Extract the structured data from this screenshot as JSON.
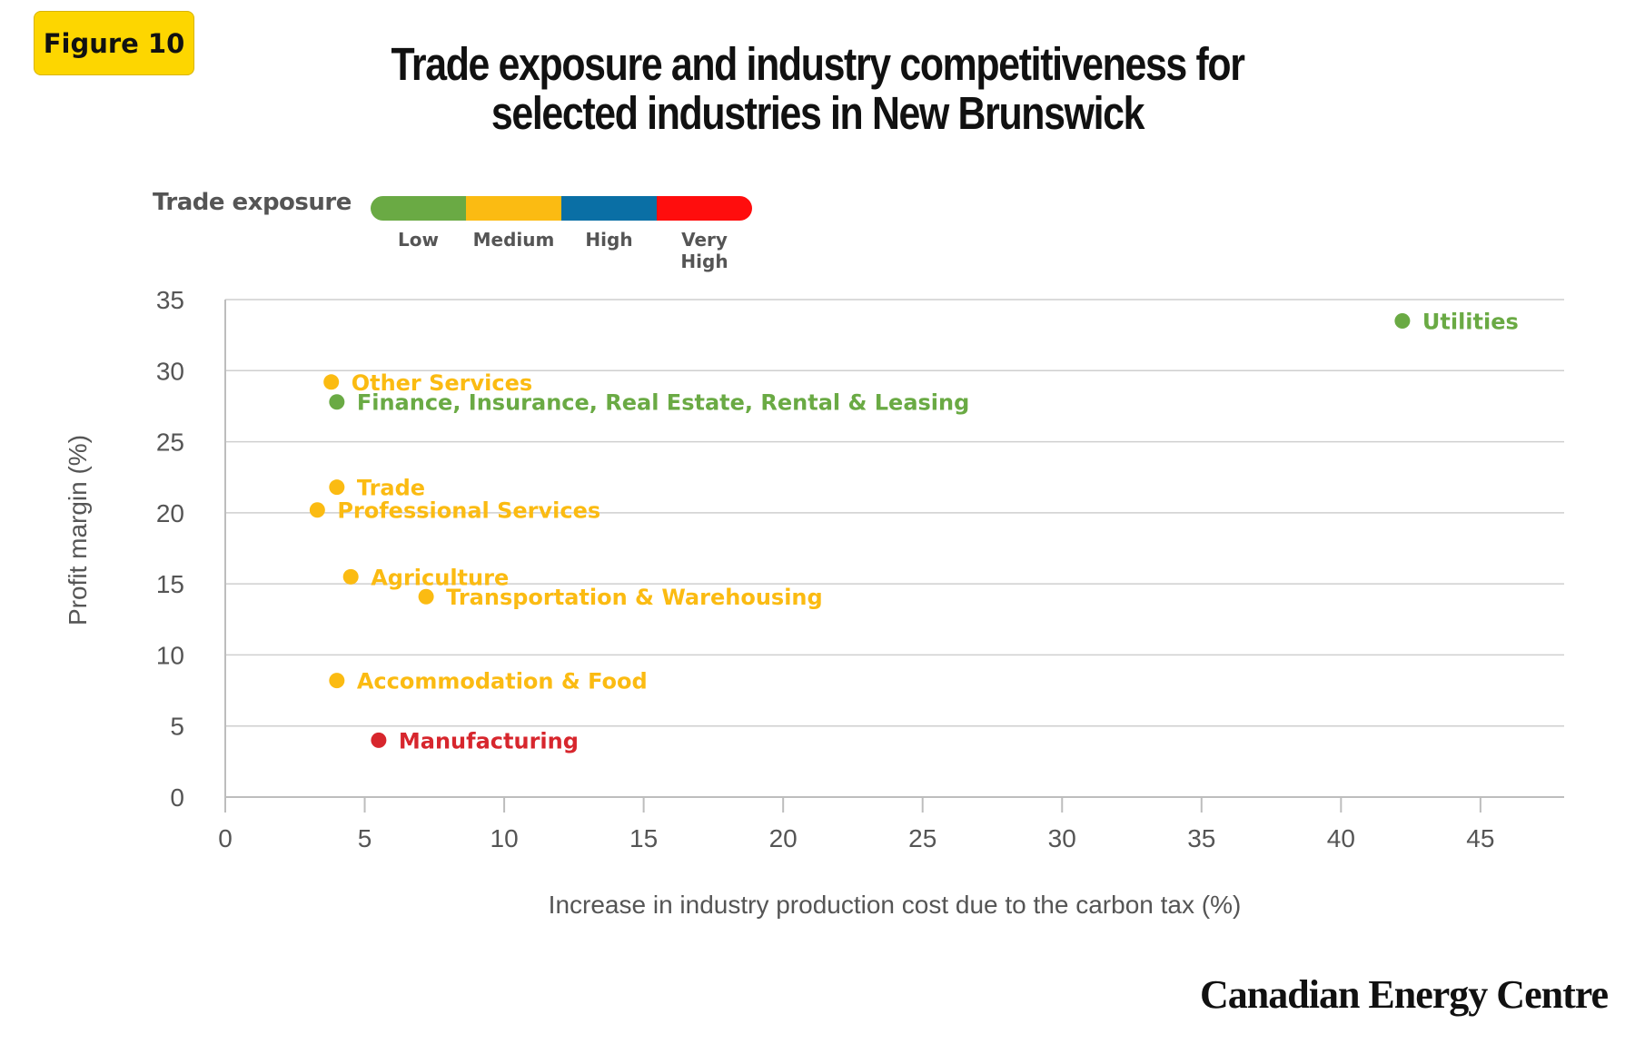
{
  "badge": "Figure 10",
  "title_lines": [
    "Trade exposure and industry competitiveness for",
    "selected industries in New Brunswick"
  ],
  "legend": {
    "title": "Trade exposure",
    "items": [
      {
        "label": "Low",
        "color": "#6AAA44"
      },
      {
        "label": "Medium",
        "color": "#FBBB12"
      },
      {
        "label": "High",
        "color": "#0A6FA5"
      },
      {
        "label": "Very High",
        "color": "#FF0D0D"
      }
    ]
  },
  "brand": "Canadian Energy Centre",
  "chart_data": {
    "type": "scatter",
    "title": "Trade exposure and industry competitiveness for selected industries in New Brunswick",
    "xlabel": "Increase in industry production cost due to the carbon tax (%)",
    "ylabel": "Profit margin (%)",
    "xlim": [
      0,
      48
    ],
    "ylim": [
      0,
      35
    ],
    "xticks": [
      0,
      5,
      10,
      15,
      20,
      25,
      30,
      35,
      40,
      45
    ],
    "yticks": [
      0,
      5,
      10,
      15,
      20,
      25,
      30,
      35
    ],
    "grid": "horizontal",
    "points": [
      {
        "label": "Utilities",
        "x": 42.2,
        "y": 33.5,
        "exposure": "Low",
        "color": "#6AAA44"
      },
      {
        "label": "Other Services",
        "x": 3.8,
        "y": 29.2,
        "exposure": "Medium",
        "color": "#FBBB12"
      },
      {
        "label": "Finance, Insurance, Real Estate, Rental & Leasing",
        "x": 4.0,
        "y": 27.8,
        "exposure": "Low",
        "color": "#6AAA44"
      },
      {
        "label": "Trade",
        "x": 4.0,
        "y": 21.8,
        "exposure": "Medium",
        "color": "#FBBB12"
      },
      {
        "label": "Professional Services",
        "x": 3.3,
        "y": 20.2,
        "exposure": "Medium",
        "color": "#FBBB12"
      },
      {
        "label": "Agriculture",
        "x": 4.5,
        "y": 15.5,
        "exposure": "Medium",
        "color": "#FBBB12"
      },
      {
        "label": "Transportation & Warehousing",
        "x": 7.2,
        "y": 14.1,
        "exposure": "Medium",
        "color": "#FBBB12"
      },
      {
        "label": "Accommodation & Food",
        "x": 4.0,
        "y": 8.2,
        "exposure": "Medium",
        "color": "#FBBB12"
      },
      {
        "label": "Manufacturing",
        "x": 5.5,
        "y": 4.0,
        "exposure": "Very High",
        "color": "#D7262D"
      }
    ]
  }
}
